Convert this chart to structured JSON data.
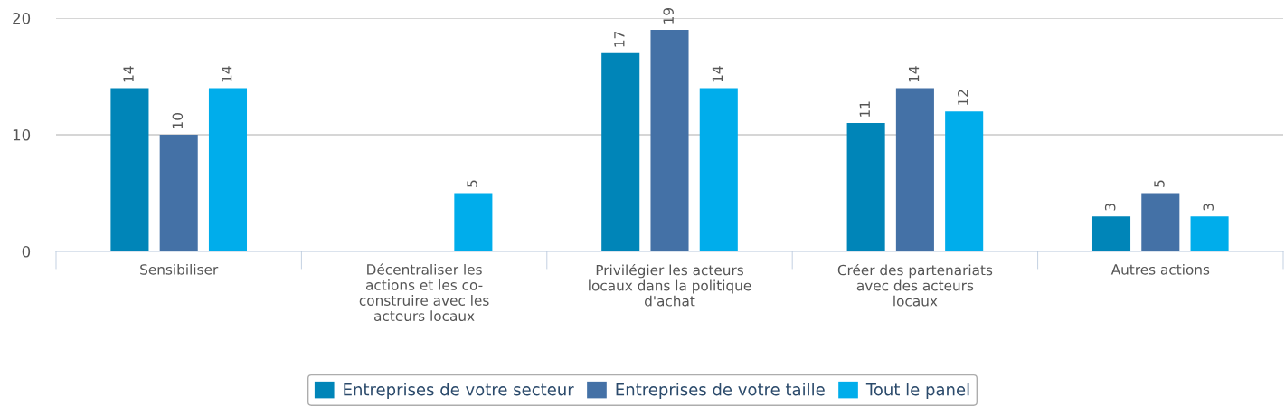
{
  "chart_data": {
    "type": "bar",
    "categories": [
      "Sensibiliser",
      "Décentraliser les\nactions et les co-\nconstruire avec les\nacteurs locaux",
      "Privilégier les acteurs\nlocaux dans la politique\nd'achat",
      "Créer des partenariats\navec des acteurs\nlocaux",
      "Autres actions"
    ],
    "series": [
      {
        "name": "Entreprises de votre secteur",
        "color": "#0085b8",
        "values": [
          14,
          null,
          17,
          11,
          3
        ]
      },
      {
        "name": "Entreprises de votre taille",
        "color": "#4471a6",
        "values": [
          10,
          null,
          19,
          14,
          5
        ]
      },
      {
        "name": "Tout le panel",
        "color": "#00adeb",
        "values": [
          14,
          5,
          14,
          12,
          3
        ]
      }
    ],
    "ylim": [
      0,
      20
    ],
    "yticks": [
      0,
      10,
      20
    ],
    "grid": "y",
    "legend": "bottom",
    "data_labels": true
  }
}
